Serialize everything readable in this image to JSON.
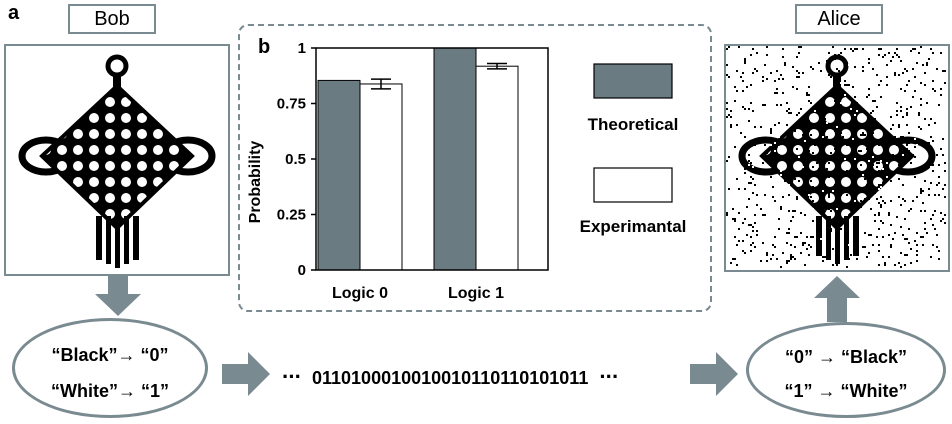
{
  "panels": {
    "a": "a",
    "b": "b"
  },
  "bob": {
    "name": "Bob",
    "mapping": [
      "“Black”→ “0”",
      "“White”→ “1”"
    ]
  },
  "alice": {
    "name": "Alice",
    "mapping": [
      "“0” → “Black”",
      "“1” → “White”"
    ]
  },
  "bitstream": {
    "lead": "···",
    "bits": "0110100010010010110110101011",
    "tail": "···"
  },
  "colors": {
    "accent": "#7a8a91",
    "theoretical": "#6b7b82",
    "experimental": "#ffffff"
  },
  "chart_data": {
    "type": "bar",
    "categories": [
      "Logic 0",
      "Logic 1"
    ],
    "series": [
      {
        "name": "Theoretical",
        "values": [
          0.854,
          1.0
        ],
        "color": "#6b7b82"
      },
      {
        "name": "Experimantal",
        "values": [
          0.838,
          0.918
        ],
        "errors": [
          0.022,
          0.012
        ],
        "color": "#ffffff"
      }
    ],
    "ylabel": "Probability",
    "ylim": [
      0,
      1
    ],
    "yticks": [
      0,
      0.25,
      0.5,
      0.75,
      1
    ],
    "ytick_labels": [
      "0",
      "0.25",
      "0.5",
      "0.75",
      "1"
    ],
    "grid": false,
    "legend": "right"
  }
}
